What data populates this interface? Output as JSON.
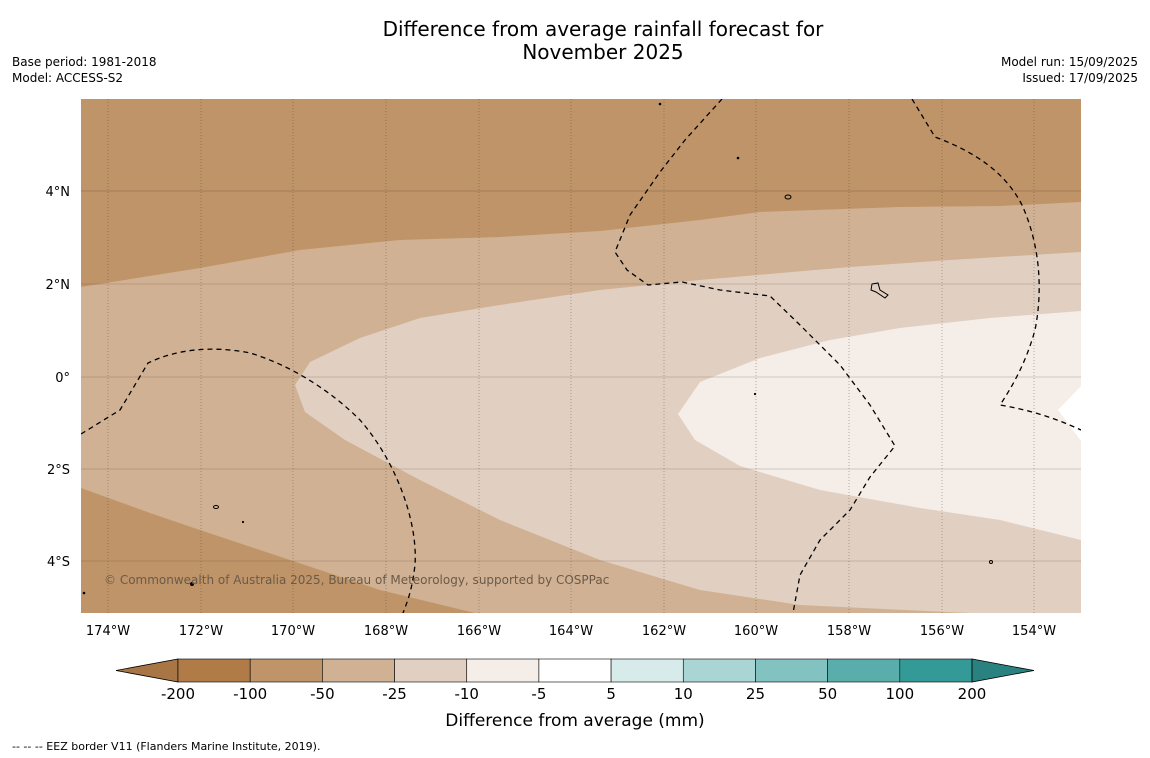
{
  "header": {
    "title_line1": "Difference from average rainfall forecast for",
    "title_line2": "November 2025",
    "base_period": "Base period: 1981-2018",
    "model": "Model: ACCESS-S2",
    "model_run": "Model run: 15/09/2025",
    "issued": "Issued: 17/09/2025"
  },
  "map": {
    "copyright": "© Commonwealth of Australia 2025, Bureau of Meteorology, supported by COSPPac",
    "lat_labels": [
      "4°N",
      "2°N",
      "0°",
      "2°S",
      "4°S"
    ],
    "lon_labels": [
      "174°W",
      "172°W",
      "170°W",
      "168°W",
      "166°W",
      "164°W",
      "162°W",
      "160°W",
      "158°W",
      "156°W",
      "154°W"
    ],
    "category_colors": {
      "minus_100_to_minus_50": "#c09469",
      "minus_50_to_minus_25": "#d1b193",
      "minus_25_to_minus_10": "#e1d0c1",
      "minus_10_to_minus_5": "#f4ede8"
    }
  },
  "colorbar": {
    "ticks": [
      "-200",
      "-100",
      "-50",
      "-25",
      "-10",
      "-5",
      "5",
      "10",
      "25",
      "50",
      "100",
      "200"
    ],
    "colors": [
      "#a87544",
      "#b07b47",
      "#c09469",
      "#d1b193",
      "#e1d0c1",
      "#f4ede8",
      "#ffffff",
      "#d6ebea",
      "#a9d6d5",
      "#82c2c1",
      "#59aeac",
      "#349a98",
      "#2a8280"
    ],
    "title": "Difference from average (mm)"
  },
  "footnote": "--  --  -- EEZ border V11 (Flanders Marine Institute, 2019)."
}
